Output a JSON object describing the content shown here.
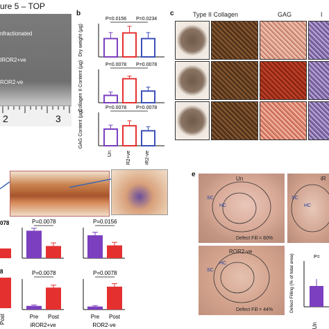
{
  "header": {
    "title": "ure 5 – TOP"
  },
  "panel_a": {
    "labels": [
      "nfractionated",
      "IROR2+ve",
      "ROR2-ve"
    ],
    "ruler_numbers": [
      "2",
      "3"
    ]
  },
  "panel_b": {
    "letter": "b",
    "ylabels": [
      "Dry weight (µg)",
      "Collagen II Content (µg)",
      "GAG Content (µg)"
    ],
    "pvalues": [
      [
        "P=0.0156",
        "P=0.0234"
      ],
      [
        "P=0.0078",
        "P=0.0078"
      ],
      [
        "P=0.0078",
        "P=0.0078"
      ]
    ],
    "categories": [
      "Un",
      "iROR2+ve",
      "ROR2-ve"
    ]
  },
  "panel_c": {
    "letter": "c",
    "headers": [
      "Type II Collagen",
      "GAG",
      "I"
    ]
  },
  "panel_d": {
    "pvalues": [
      "P=0.0078",
      "P=0.0156",
      "P=0.0078",
      "P=0.0078"
    ],
    "left_values_top": "078",
    "left_values_bottom": "8",
    "xticks": [
      "Pre",
      "Post",
      "Pre",
      "Post"
    ],
    "groups": [
      "iROR2+ve",
      "ROR2-ve"
    ],
    "left_tick": "Post"
  },
  "panel_e": {
    "letter": "e",
    "titles": [
      "Un",
      "iR",
      "ROR2-ve"
    ],
    "labels": {
      "sc": "SC",
      "hc": "HC"
    },
    "fills": [
      "Defect Fill = 60%",
      "Defect Fill = 44%"
    ],
    "chart_ylabel": "Defect Filling (% of total area)",
    "chart_p": "P=",
    "chart_xtick": "Un"
  },
  "chart_data": [
    {
      "type": "bar",
      "title": "",
      "categories": [
        "Un",
        "iROR2+ve",
        "ROR2-ve"
      ],
      "ylabel": "Dry weight (µg)",
      "values": [
        0.55,
        0.72,
        0.55
      ],
      "errors": [
        0.18,
        0.2,
        0.18
      ],
      "colors": [
        "#7b3fbf",
        "#e53030",
        "#3c4fb8"
      ]
    },
    {
      "type": "bar",
      "title": "",
      "categories": [
        "Un",
        "iROR2+ve",
        "ROR2-ve"
      ],
      "ylabel": "Collagen II Content (µg)",
      "values": [
        0.22,
        0.72,
        0.35
      ],
      "errors": [
        0.1,
        0.08,
        0.12
      ],
      "colors": [
        "#7b3fbf",
        "#e53030",
        "#3c4fb8"
      ]
    },
    {
      "type": "bar",
      "title": "",
      "categories": [
        "Un",
        "iROR2+ve",
        "ROR2-ve"
      ],
      "ylabel": "GAG Content (µg)",
      "values": [
        0.5,
        0.6,
        0.45
      ],
      "errors": [
        0.12,
        0.15,
        0.12
      ],
      "colors": [
        "#7b3fbf",
        "#e53030",
        "#3c4fb8"
      ]
    },
    {
      "type": "bar",
      "title": "",
      "categories": [
        "Pre",
        "Post"
      ],
      "series": [
        {
          "values": [
            0.9,
            0.4
          ],
          "colors": [
            "#7b3fbf",
            "#e53030"
          ]
        }
      ],
      "errors": [
        0.08,
        0.1
      ]
    },
    {
      "type": "bar",
      "title": "",
      "categories": [
        "Pre",
        "Post"
      ],
      "series": [
        {
          "values": [
            0.75,
            0.42
          ],
          "colors": [
            "#7b3fbf",
            "#e53030"
          ]
        }
      ],
      "errors": [
        0.1,
        0.1
      ]
    },
    {
      "type": "bar",
      "title": "",
      "categories": [
        "Pre",
        "Post"
      ],
      "series": [
        {
          "values": [
            0.12,
            0.72
          ],
          "colors": [
            "#7b3fbf",
            "#e53030"
          ]
        }
      ],
      "errors": [
        0.03,
        0.08
      ]
    },
    {
      "type": "bar",
      "title": "",
      "categories": [
        "Pre",
        "Post"
      ],
      "series": [
        {
          "values": [
            0.1,
            0.75
          ],
          "colors": [
            "#7b3fbf",
            "#e53030"
          ]
        }
      ],
      "errors": [
        0.03,
        0.1
      ]
    }
  ]
}
